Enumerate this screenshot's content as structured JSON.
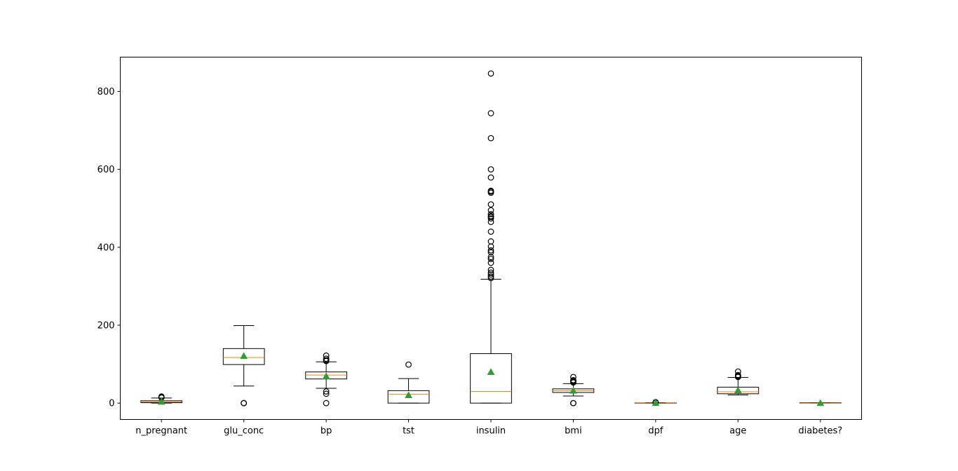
{
  "chart_data": {
    "type": "box",
    "title": "",
    "xlabel": "",
    "ylabel": "",
    "ylim": [
      -42,
      888
    ],
    "yticks": [
      0,
      200,
      400,
      600,
      800
    ],
    "grid": false,
    "legend": "none",
    "colors": {
      "box": "#000000",
      "median": "#ff7f0e",
      "mean": "#2ca02c",
      "flier": "#000000"
    },
    "categories": [
      "n_pregnant",
      "glu_conc",
      "bp",
      "tst",
      "insulin",
      "bmi",
      "dpf",
      "age",
      "diabetes?"
    ],
    "boxes": [
      {
        "label": "n_pregnant",
        "whislo": 0,
        "q1": 1,
        "med": 3,
        "q3": 6,
        "whishi": 13,
        "mean": 3.8,
        "fliers": [
          14,
          15,
          17
        ]
      },
      {
        "label": "glu_conc",
        "whislo": 44,
        "q1": 99,
        "med": 117,
        "q3": 140,
        "whishi": 199,
        "mean": 121,
        "fliers": [
          0,
          0,
          0
        ]
      },
      {
        "label": "bp",
        "whislo": 38,
        "q1": 62,
        "med": 72,
        "q3": 80,
        "whishi": 106,
        "mean": 69,
        "fliers": [
          0,
          24,
          30,
          108,
          110,
          114,
          122
        ]
      },
      {
        "label": "tst",
        "whislo": 0,
        "q1": 0,
        "med": 23,
        "q3": 32,
        "whishi": 63,
        "mean": 20.5,
        "fliers": [
          99
        ]
      },
      {
        "label": "insulin",
        "whislo": 0,
        "q1": 0,
        "med": 30,
        "q3": 127,
        "whishi": 318,
        "mean": 80,
        "fliers": [
          321,
          325,
          330,
          335,
          342,
          360,
          370,
          375,
          387,
          392,
          402,
          415,
          440,
          465,
          474,
          478,
          480,
          485,
          495,
          510,
          540,
          543,
          545,
          579,
          600,
          680,
          744,
          846
        ]
      },
      {
        "label": "bmi",
        "whislo": 18.2,
        "q1": 27.3,
        "med": 32,
        "q3": 36.6,
        "whishi": 50,
        "mean": 32,
        "fliers": [
          0,
          0,
          53,
          55,
          57,
          59,
          67
        ]
      },
      {
        "label": "dpf",
        "whislo": 0.08,
        "q1": 0.24,
        "med": 0.37,
        "q3": 0.63,
        "whishi": 1.2,
        "mean": 0.47,
        "fliers": [
          1.3,
          1.6,
          2.0,
          2.4
        ]
      },
      {
        "label": "age",
        "whislo": 21,
        "q1": 24,
        "med": 29,
        "q3": 41,
        "whishi": 66,
        "mean": 33,
        "fliers": [
          67,
          68,
          69,
          70,
          72,
          81
        ]
      },
      {
        "label": "diabetes?",
        "whislo": 0,
        "q1": 0,
        "med": 0,
        "q3": 1,
        "whishi": 1,
        "mean": 0.35,
        "fliers": []
      }
    ]
  }
}
